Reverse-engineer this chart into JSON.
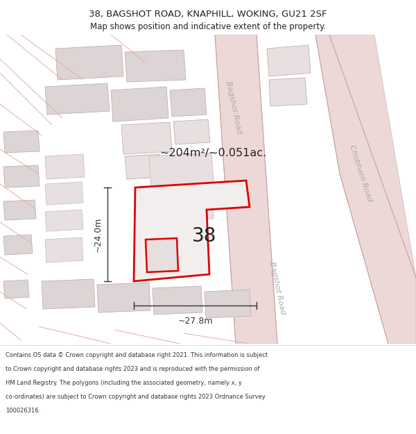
{
  "title": "38, BAGSHOT ROAD, KNAPHILL, WOKING, GU21 2SF",
  "subtitle": "Map shows position and indicative extent of the property.",
  "area_label": "~204m²/~0.051ac.",
  "number_label": "38",
  "dim_v": "~24.0m",
  "dim_h": "~27.8m",
  "footer_lines": [
    "Contains OS data © Crown copyright and database right 2021. This information is subject",
    "to Crown copyright and database rights 2023 and is reproduced with the permission of",
    "HM Land Registry. The polygons (including the associated geometry, namely x, y",
    "co-ordinates) are subject to Crown copyright and database rights 2023 Ordnance Survey",
    "100026316."
  ],
  "bg_color": "#ffffff",
  "map_bg": "#f7f3f3",
  "road_fill": "#edd8d8",
  "road_edge": "#d8b0b0",
  "bld_fill": "#ddd5d5",
  "bld_edge": "#c0b0b0",
  "bld_fill2": "#e8e0e0",
  "red": "#dd0000",
  "road_label": "#aaaaaa",
  "dim_color": "#333333",
  "title_color": "#222222"
}
